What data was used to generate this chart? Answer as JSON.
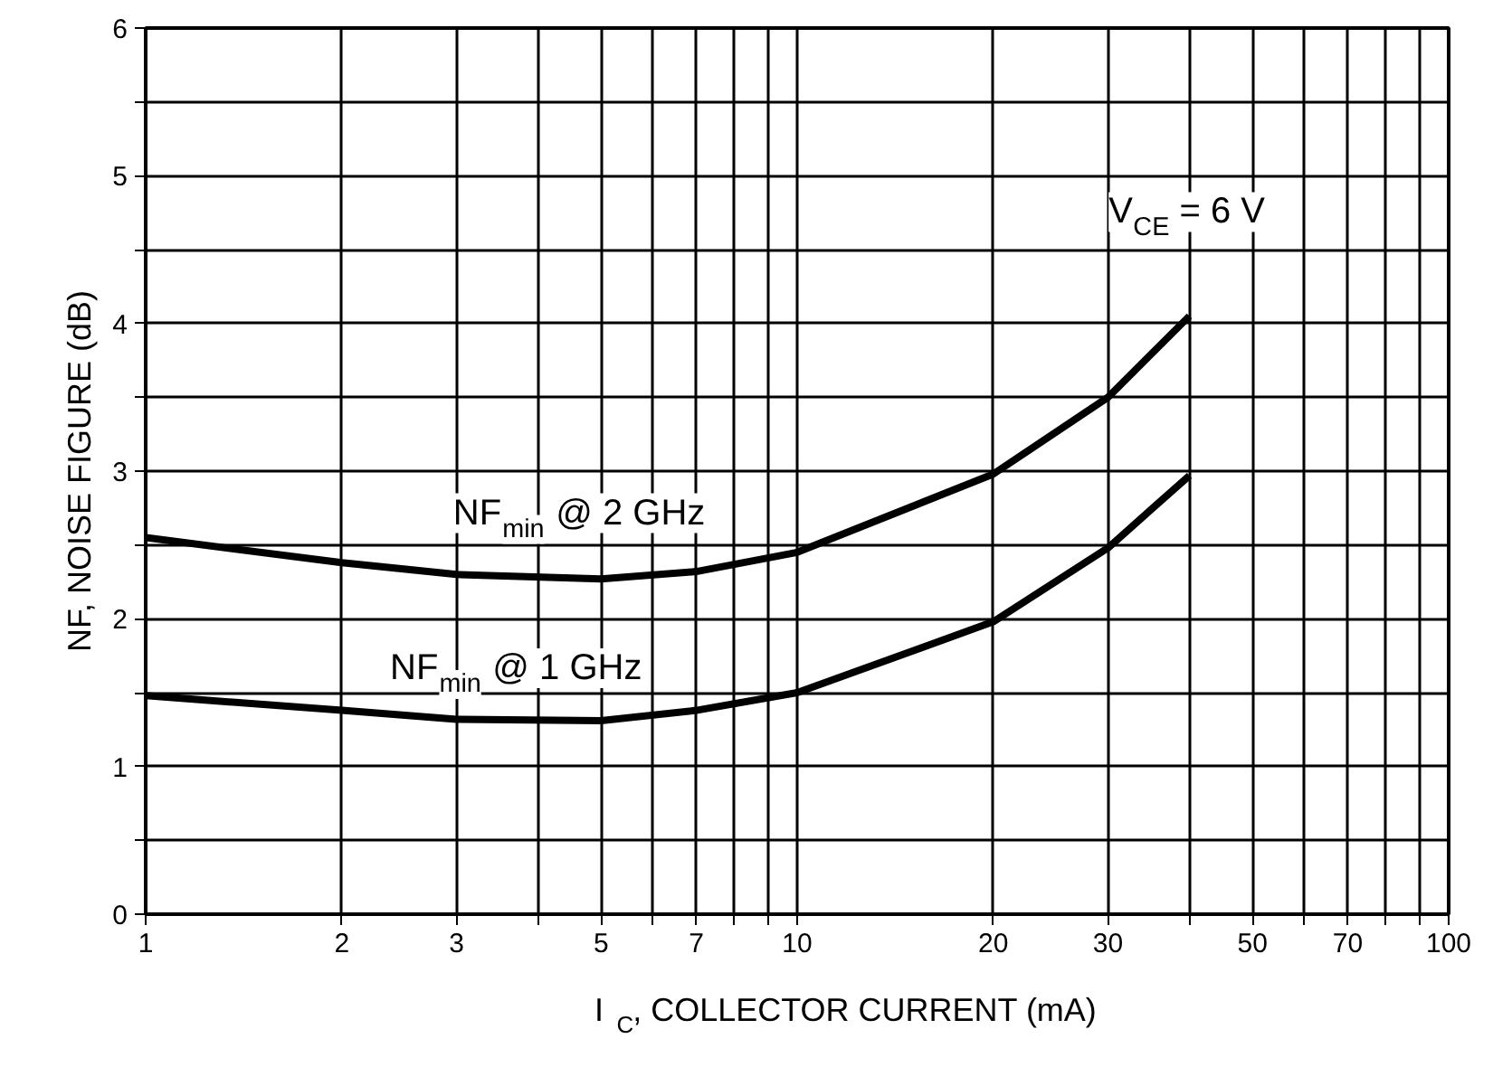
{
  "chart_data": {
    "type": "line",
    "xlabel": "I$_{C}$, COLLECTOR CURRENT (mA)",
    "ylabel": "NF, NOISE FIGURE (dB)",
    "log": "x",
    "x": [
      1,
      2,
      3,
      5,
      7,
      10,
      20,
      30,
      40
    ],
    "series": [
      {
        "color": "#000000",
        "values": [
          2.55,
          2.38,
          2.3,
          2.27,
          2.32,
          2.45,
          2.98,
          3.5,
          4.05
        ]
      },
      {
        "color": "#000000",
        "values": [
          1.48,
          1.38,
          1.32,
          1.31,
          1.38,
          1.5,
          1.98,
          2.48,
          2.97
        ]
      }
    ],
    "annotations": [
      "NF$_{min}$ @ 2 GHz",
      "NF$_{min}$ @ 1 GHz",
      "V$_{CE}$ = 6 V"
    ],
    "xlim": [
      1,
      100
    ],
    "ylim": [
      0,
      6
    ],
    "xticks": [
      1,
      2,
      3,
      {
        "value": 4,
        "label": null
      },
      5,
      {
        "value": 6,
        "label": null
      },
      7,
      {
        "value": 8,
        "label": null
      },
      {
        "value": 9,
        "label": null
      },
      10,
      20,
      30,
      {
        "value": 40,
        "label": null
      },
      50,
      {
        "value": 60,
        "label": null
      },
      70,
      {
        "value": 80,
        "label": null
      },
      {
        "value": 90,
        "label": null
      },
      100
    ],
    "yticks": [
      0,
      {
        "value": 0.5,
        "label": null
      },
      1,
      {
        "value": 1.5,
        "label": null
      },
      2,
      {
        "value": 2.5,
        "label": null
      },
      3,
      {
        "value": 3.5,
        "label": null
      },
      4,
      {
        "value": 4.5,
        "label": null
      },
      5,
      {
        "value": 5.5,
        "label": null
      },
      6
    ],
    "grid": true,
    "line_style": "solid",
    "marker": "none"
  }
}
